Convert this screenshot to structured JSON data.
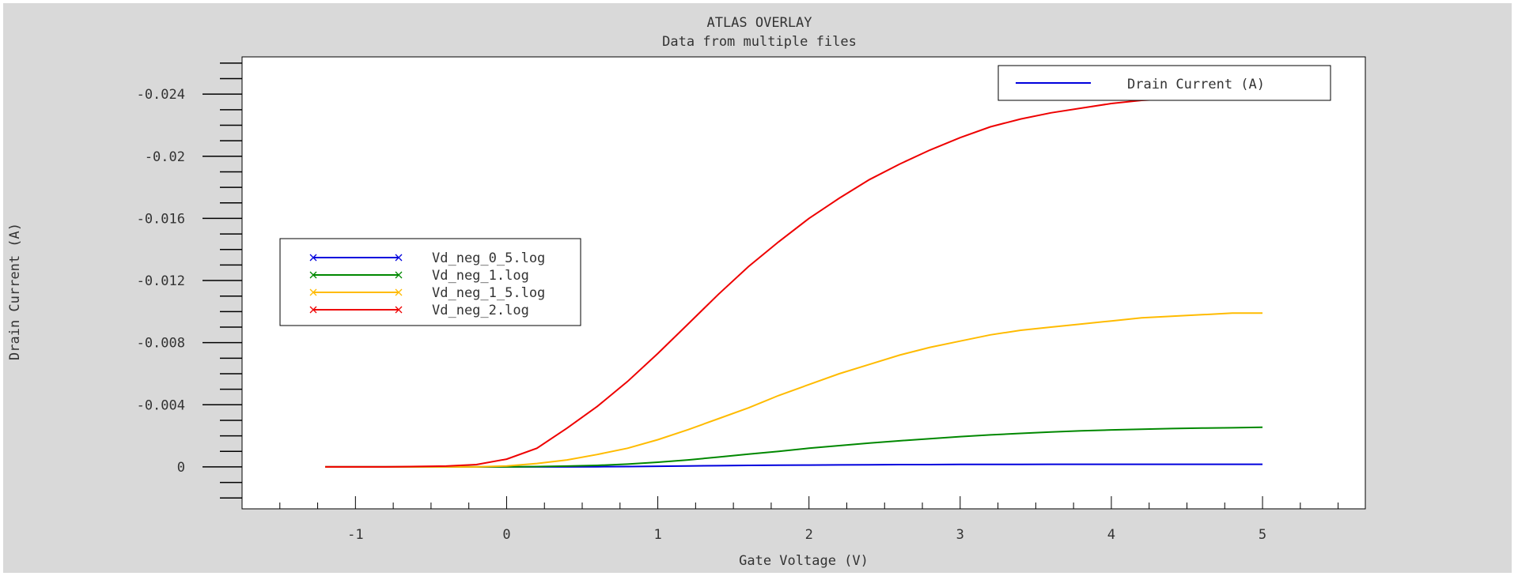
{
  "chart_data": {
    "type": "line",
    "title": "ATLAS OVERLAY",
    "subtitle": "Data from multiple files",
    "xlabel": "Gate Voltage (V)",
    "ylabel": "Drain Current (A)",
    "xlim": [
      -1.75,
      5.68
    ],
    "ylim": [
      0.0027,
      -0.0264
    ],
    "x_major_ticks": [
      -1,
      0,
      1,
      2,
      3,
      4,
      5
    ],
    "x_tick_labels": [
      "-1",
      "0",
      "1",
      "2",
      "3",
      "4",
      "5"
    ],
    "y_major_ticks": [
      -0.024,
      -0.02,
      -0.016,
      -0.012,
      -0.008,
      -0.004,
      0
    ],
    "y_tick_labels": [
      "-0.024",
      "-0.02",
      "-0.016",
      "-0.012",
      "-0.008",
      "-0.004",
      "0"
    ],
    "grid": false,
    "axis_legend": {
      "placement": "top-right",
      "entries": [
        {
          "label": "Drain Current (A)",
          "color": "#0000dd"
        }
      ]
    },
    "legend": {
      "placement": "middle-left",
      "entries": [
        {
          "label": "Vd_neg_0_5.log",
          "color": "#0000dd"
        },
        {
          "label": "Vd_neg_1.log",
          "color": "#008800"
        },
        {
          "label": "Vd_neg_1_5.log",
          "color": "#ffbb00"
        },
        {
          "label": "Vd_neg_2.log",
          "color": "#ee0000"
        }
      ]
    },
    "x": [
      -1.2,
      -0.8,
      -0.4,
      -0.2,
      0,
      0.2,
      0.4,
      0.6,
      0.8,
      1,
      1.2,
      1.4,
      1.6,
      1.8,
      2,
      2.2,
      2.4,
      2.6,
      2.8,
      3,
      3.2,
      3.4,
      3.6,
      3.8,
      4,
      4.2,
      4.4,
      4.6,
      4.8,
      5
    ],
    "series": [
      {
        "name": "Vd_neg_0_5.log",
        "color": "#0000dd",
        "values": [
          0,
          0,
          0,
          0,
          0,
          0,
          0,
          -1e-05,
          -2e-05,
          -4e-05,
          -6e-05,
          -8e-05,
          -0.0001,
          -0.00011,
          -0.00012,
          -0.00013,
          -0.00014,
          -0.00015,
          -0.00015,
          -0.00016,
          -0.00016,
          -0.00016,
          -0.00017,
          -0.00017,
          -0.00017,
          -0.00017,
          -0.00017,
          -0.00017,
          -0.00017,
          -0.00017
        ]
      },
      {
        "name": "Vd_neg_1.log",
        "color": "#008800",
        "values": [
          0,
          0,
          0,
          0,
          0,
          -2e-05,
          -5e-05,
          -0.0001,
          -0.00018,
          -0.0003,
          -0.00045,
          -0.00063,
          -0.00082,
          -0.001,
          -0.0012,
          -0.00137,
          -0.00154,
          -0.00168,
          -0.00182,
          -0.00195,
          -0.00206,
          -0.00216,
          -0.00225,
          -0.00232,
          -0.00238,
          -0.00243,
          -0.00247,
          -0.0025,
          -0.00252,
          -0.00255
        ]
      },
      {
        "name": "Vd_neg_1_5.log",
        "color": "#ffbb00",
        "values": [
          0,
          0,
          0,
          0,
          -6e-05,
          -0.00022,
          -0.00045,
          -0.0008,
          -0.0012,
          -0.00175,
          -0.0024,
          -0.0031,
          -0.0038,
          -0.0046,
          -0.0053,
          -0.006,
          -0.0066,
          -0.0072,
          -0.0077,
          -0.0081,
          -0.0085,
          -0.0088,
          -0.009,
          -0.0092,
          -0.0094,
          -0.0096,
          -0.0097,
          -0.0098,
          -0.0099,
          -0.0099
        ]
      },
      {
        "name": "Vd_neg_2.log",
        "color": "#ee0000",
        "values": [
          0,
          0,
          -5e-05,
          -0.00015,
          -0.0005,
          -0.0012,
          -0.0025,
          -0.0039,
          -0.0055,
          -0.0073,
          -0.0092,
          -0.0111,
          -0.0129,
          -0.0145,
          -0.016,
          -0.0173,
          -0.0185,
          -0.0195,
          -0.0204,
          -0.0212,
          -0.0219,
          -0.0224,
          -0.0228,
          -0.0231,
          -0.0234,
          -0.0236,
          -0.0237,
          -0.0238,
          -0.0239,
          -0.0239
        ]
      }
    ]
  }
}
